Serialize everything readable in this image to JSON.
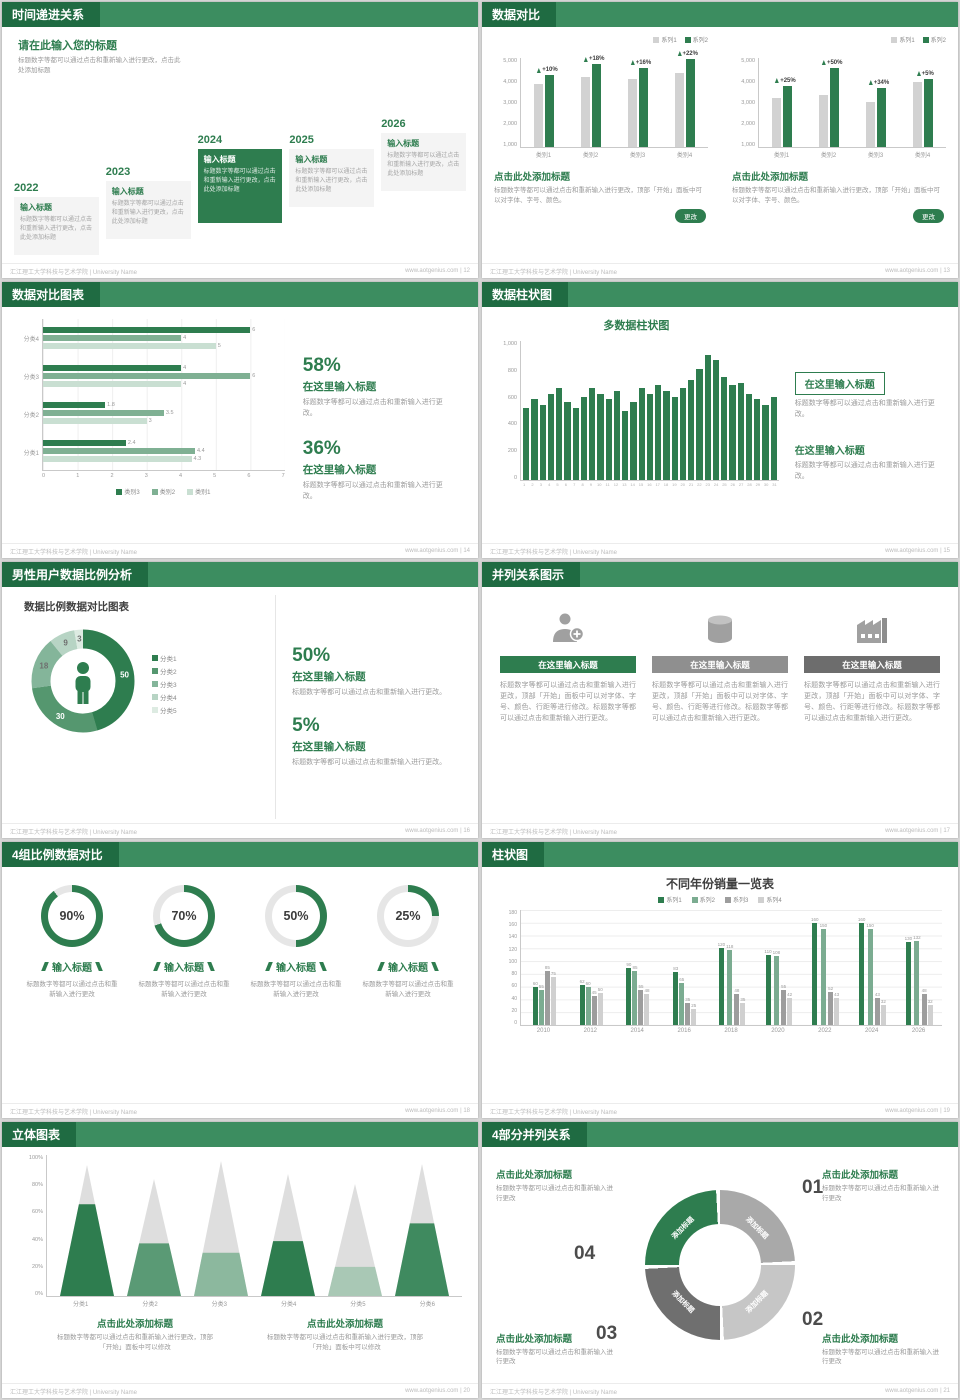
{
  "colors": {
    "green": "#2e7d4f",
    "green_dark": "#1f6b42",
    "green_header": "#3c8d60"
  },
  "footer": {
    "left": "汇江理工大学科技与艺术学院 | University Name"
  },
  "s12": {
    "header": "时间递进关系",
    "footer_right": "www.aotgenius.com | 12",
    "intro_title": "请在此输入您的标题",
    "intro_text": "标题数字等都可以通过点击和重新输入进行更改，点击此处添加标题",
    "milestones": [
      {
        "year": "2022",
        "label": "输入标题",
        "text": "标题数字等都可以通过点击和重新输入进行更改，点击此处添加标题",
        "highlight": false
      },
      {
        "year": "2023",
        "label": "输入标题",
        "text": "标题数字等都可以通过点击和重新输入进行更改，点击此处添加标题",
        "highlight": false
      },
      {
        "year": "2024",
        "label": "输入标题",
        "text": "标题数字等都可以通过点击和重新输入进行更改，点击此处添加标题",
        "highlight": true
      },
      {
        "year": "2025",
        "label": "输入标题",
        "text": "标题数字等都可以通过点击和重新输入进行更改，点击此处添加标题",
        "highlight": false
      },
      {
        "year": "2026",
        "label": "输入标题",
        "text": "标题数字等都可以通过点击和重新输入进行更改，点击此处添加标题",
        "highlight": false
      }
    ]
  },
  "s13": {
    "header": "数据对比",
    "footer_right": "www.aotgenius.com | 13",
    "panels": [
      {
        "series": [
          {
            "name": "系列1",
            "color": "#d2d2d2",
            "values": [
              3500,
              3900,
              3800,
              4100
            ]
          },
          {
            "name": "系列2",
            "color": "#2e7d4f",
            "values": [
              4000,
              4600,
              4400,
              4900
            ]
          }
        ],
        "categories": [
          "类别1",
          "类别2",
          "类别3",
          "类别4"
        ],
        "growth": [
          "+10%",
          "+18%",
          "+16%",
          "+22%"
        ],
        "yticks": [
          "5,000",
          "4,000",
          "3,000",
          "2,000",
          "1,000"
        ],
        "ymax": 5000,
        "title": "点击此处添加标题",
        "desc": "标题数字等都可以通过点击和重新输入进行更改，顶部「开始」面板中可以对字体、字号、颜色。",
        "button": "更改"
      },
      {
        "series": [
          {
            "name": "系列1",
            "color": "#d2d2d2",
            "values": [
              2700,
              2900,
              2500,
              3600
            ]
          },
          {
            "name": "系列2",
            "color": "#2e7d4f",
            "values": [
              3400,
              4400,
              3300,
              3800
            ]
          }
        ],
        "categories": [
          "类别1",
          "类别2",
          "类别3",
          "类别4"
        ],
        "growth": [
          "+25%",
          "+50%",
          "+34%",
          "+5%"
        ],
        "yticks": [
          "5,000",
          "4,000",
          "3,000",
          "2,000",
          "1,000"
        ],
        "ymax": 5000,
        "title": "点击此处添加标题",
        "desc": "标题数字等都可以通过点击和重新输入进行更改，顶部「开始」面板中可以对字体、字号、颜色。",
        "button": "更改"
      }
    ]
  },
  "s14": {
    "header": "数据对比图表",
    "footer_right": "www.aotgenius.com | 14",
    "chart": {
      "type": "bar-horizontal",
      "xmax": 7,
      "xticks": [
        "0",
        "1",
        "2",
        "3",
        "4",
        "5",
        "6",
        "7"
      ],
      "legend": [
        {
          "label": "类别3",
          "color": "#2e7d4f"
        },
        {
          "label": "类别2",
          "color": "#7fb093"
        },
        {
          "label": "类别1",
          "color": "#c9dfd2"
        }
      ],
      "groups": [
        {
          "label": "分类4",
          "values": [
            6,
            4,
            5
          ]
        },
        {
          "label": "分类3",
          "values": [
            4,
            6,
            4
          ]
        },
        {
          "label": "分类2",
          "values": [
            1.8,
            3.5,
            3
          ]
        },
        {
          "label": "分类1",
          "values": [
            2.4,
            4.4,
            4.3
          ]
        }
      ]
    },
    "stats": [
      {
        "pct": "58%",
        "title": "在这里输入标题",
        "text": "标题数字等都可以通过点击和重新输入进行更改。"
      },
      {
        "pct": "36%",
        "title": "在这里输入标题",
        "text": "标题数字等都可以通过点击和重新输入进行更改。"
      }
    ]
  },
  "s15": {
    "header": "数据柱状图",
    "footer_right": "www.aotgenius.com | 15",
    "chart": {
      "type": "bar",
      "title": "多数据柱状图",
      "ymax": 1000,
      "yticks": [
        "1,000",
        "800",
        "600",
        "400",
        "200",
        "0"
      ],
      "values": [
        520,
        580,
        540,
        620,
        660,
        560,
        520,
        600,
        660,
        620,
        580,
        640,
        500,
        560,
        660,
        620,
        680,
        640,
        600,
        660,
        720,
        800,
        900,
        860,
        740,
        680,
        700,
        620,
        580,
        540,
        600
      ],
      "xlabels": [
        "1",
        "2",
        "3",
        "4",
        "5",
        "6",
        "7",
        "8",
        "9",
        "10",
        "11",
        "12",
        "13",
        "14",
        "15",
        "16",
        "17",
        "18",
        "19",
        "20",
        "21",
        "22",
        "23",
        "24",
        "25",
        "26",
        "27",
        "28",
        "29",
        "30",
        "31"
      ]
    },
    "blocks": [
      {
        "title": "在这里输入标题",
        "text": "标题数字等都可以通过点击和重新输入进行更改。"
      },
      {
        "title": "在这里输入标题",
        "text": "标题数字等都可以通过点击和重新输入进行更改。"
      }
    ]
  },
  "s16": {
    "header": "男性用户数据比例分析",
    "footer_right": "www.aotgenius.com | 16",
    "chart_title": "数据比例数据对比图表",
    "donut": {
      "type": "pie",
      "segments": [
        {
          "label": "分类1",
          "value": 50,
          "color": "#2e7d4f"
        },
        {
          "label": "分类2",
          "value": 30,
          "color": "#55976f"
        },
        {
          "label": "分类3",
          "value": 18,
          "color": "#84b59a"
        },
        {
          "label": "分类4",
          "value": 9,
          "color": "#b7d4c4"
        },
        {
          "label": "分类5",
          "value": 3,
          "color": "#ddebe2"
        }
      ]
    },
    "stats": [
      {
        "pct": "50%",
        "title": "在这里输入标题",
        "text": "标题数字等都可以通过点击和重新输入进行更改。"
      },
      {
        "pct": "5%",
        "title": "在这里输入标题",
        "text": "标题数字等都可以通过点击和重新输入进行更改。"
      }
    ]
  },
  "s17": {
    "header": "并列关系图示",
    "footer_right": "www.aotgenius.com | 17",
    "columns": [
      {
        "icon": "medical-person-icon",
        "bar_label": "在这里输入标题",
        "bar_color": "#2e7d4f",
        "text": "标题数字等都可以通过点击和重新输入进行更改，顶部「开始」面板中可以对字体、字号、颜色、行距等进行修改。标题数字等都可以通过点击和重新输入进行更改。"
      },
      {
        "icon": "database-icon",
        "bar_label": "在这里输入标题",
        "bar_color": "#8f8f8f",
        "text": "标题数字等都可以通过点击和重新输入进行更改，顶部「开始」面板中可以对字体、字号、颜色、行距等进行修改。标题数字等都可以通过点击和重新输入进行更改。"
      },
      {
        "icon": "factory-icon",
        "bar_label": "在这里输入标题",
        "bar_color": "#6d6d6d",
        "text": "标题数字等都可以通过点击和重新输入进行更改，顶部「开始」面板中可以对字体、字号、颜色、行距等进行修改。标题数字等都可以通过点击和重新输入进行更改。"
      }
    ]
  },
  "s18": {
    "header": "4组比例数据对比",
    "footer_right": "www.aotgenius.com | 18",
    "items": [
      {
        "percent": 90,
        "label": "90%",
        "title": "输入标题",
        "text": "标题数字等都可以通过点击和重新输入进行更改"
      },
      {
        "percent": 70,
        "label": "70%",
        "title": "输入标题",
        "text": "标题数字等都可以通过点击和重新输入进行更改"
      },
      {
        "percent": 50,
        "label": "50%",
        "title": "输入标题",
        "text": "标题数字等都可以通过点击和重新输入进行更改"
      },
      {
        "percent": 25,
        "label": "25%",
        "title": "输入标题",
        "text": "标题数字等都可以通过点击和重新输入进行更改"
      }
    ]
  },
  "s19": {
    "header": "柱状图",
    "footer_right": "www.aotgenius.com | 19",
    "chart": {
      "type": "bar",
      "title": "不同年份销量一览表",
      "ymax": 180,
      "yticks": [
        "180",
        "160",
        "140",
        "120",
        "100",
        "80",
        "60",
        "40",
        "20",
        "0"
      ],
      "legend": [
        {
          "label": "系列1",
          "color": "#2e7d4f"
        },
        {
          "label": "系列2",
          "color": "#7bac91"
        },
        {
          "label": "系列3",
          "color": "#9d9d9d"
        },
        {
          "label": "系列4",
          "color": "#d0d0d0"
        }
      ],
      "years": [
        "2010",
        "2012",
        "2014",
        "2016",
        "2018",
        "2020",
        "2022",
        "2024",
        "2026"
      ],
      "series": [
        {
          "name": "系列1",
          "values": [
            60,
            62,
            90,
            83,
            120,
            110,
            160,
            160,
            130
          ]
        },
        {
          "name": "系列2",
          "values": [
            55,
            60,
            85,
            65,
            118,
            108,
            150,
            150,
            132
          ]
        },
        {
          "name": "系列3",
          "values": [
            85,
            45,
            55,
            35,
            48,
            55,
            52,
            43,
            48
          ]
        },
        {
          "name": "系列4",
          "values": [
            75,
            50,
            48,
            25,
            35,
            42,
            43,
            32,
            32
          ]
        }
      ]
    }
  },
  "s20": {
    "header": "立体图表",
    "footer_right": "www.aotgenius.com | 20",
    "chart": {
      "type": "cone",
      "yticks": [
        "100%",
        "80%",
        "60%",
        "40%",
        "20%",
        "0%"
      ],
      "cones": [
        {
          "label": "分类1",
          "height": 0.96,
          "fill": 0.7,
          "color": "#2e7d4f"
        },
        {
          "label": "分类2",
          "height": 0.86,
          "fill": 0.45,
          "color": "#5a9a75"
        },
        {
          "label": "分类3",
          "height": 0.99,
          "fill": 0.32,
          "color": "#8cb89e"
        },
        {
          "label": "分类4",
          "height": 0.9,
          "fill": 0.45,
          "color": "#2e7d4f"
        },
        {
          "label": "分类5",
          "height": 0.82,
          "fill": 0.26,
          "color": "#a9c8b5"
        },
        {
          "label": "分类6",
          "height": 0.97,
          "fill": 0.55,
          "color": "#3f8a5f"
        }
      ]
    },
    "blocks": [
      {
        "title": "点击此处添加标题",
        "text": "标题数字等都可以通过点击和重新输入进行更改，顶部「开始」面板中可以修改"
      },
      {
        "title": "点击此处添加标题",
        "text": "标题数字等都可以通过点击和重新输入进行更改，顶部「开始」面板中可以修改"
      }
    ]
  },
  "s21": {
    "header": "4部分并列关系",
    "footer_right": "www.aotgenius.com | 21",
    "segments": [
      {
        "num": "01",
        "label": "添加标题",
        "color": "#a9a9a9"
      },
      {
        "num": "02",
        "label": "添加标题",
        "color": "#c6c6c6"
      },
      {
        "num": "03",
        "label": "添加标题",
        "color": "#6f6f6f"
      },
      {
        "num": "04",
        "label": "添加标题",
        "color": "#2e7d4f"
      }
    ],
    "blocks": [
      {
        "title": "点击此处添加标题",
        "text": "标题数字等都可以通过点击和重新输入进行更改"
      },
      {
        "title": "点击此处添加标题",
        "text": "标题数字等都可以通过点击和重新输入进行更改"
      },
      {
        "title": "点击此处添加标题",
        "text": "标题数字等都可以通过点击和重新输入进行更改"
      },
      {
        "title": "点击此处添加标题",
        "text": "标题数字等都可以通过点击和重新输入进行更改"
      }
    ]
  }
}
